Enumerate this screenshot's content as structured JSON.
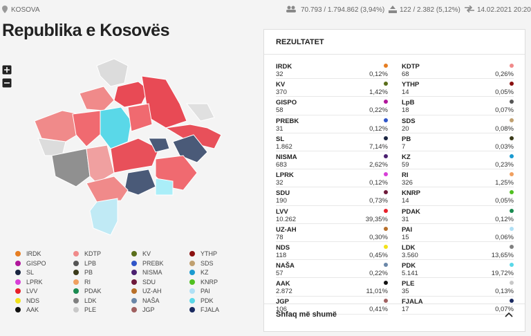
{
  "header": {
    "location": "KOSOVA",
    "voters": "70.793 / 1.794.862 (3,94%)",
    "stations": "122 / 2.382 (5,12%)",
    "updated": "14.02.2021 20:20"
  },
  "title": "Republika e Kosovës",
  "legend": [
    {
      "name": "IRDK",
      "color": "#e67e22"
    },
    {
      "name": "KDTP",
      "color": "#f08a8a"
    },
    {
      "name": "KV",
      "color": "#5a6e1a"
    },
    {
      "name": "YTHP",
      "color": "#8a1010"
    },
    {
      "name": "GISPO",
      "color": "#b0169b"
    },
    {
      "name": "LPB",
      "color": "#555555"
    },
    {
      "name": "PREBK",
      "color": "#2f55c8"
    },
    {
      "name": "SDS",
      "color": "#c0a070"
    },
    {
      "name": "SL",
      "color": "#1a2540"
    },
    {
      "name": "PB",
      "color": "#3a3a1a"
    },
    {
      "name": "NISMA",
      "color": "#4a2070"
    },
    {
      "name": "KZ",
      "color": "#1a9ad0"
    },
    {
      "name": "LPRK",
      "color": "#d83fd8"
    },
    {
      "name": "RI",
      "color": "#f0a060"
    },
    {
      "name": "SDU",
      "color": "#6e1a3a"
    },
    {
      "name": "KNRP",
      "color": "#50c020"
    },
    {
      "name": "LVV",
      "color": "#e8202a"
    },
    {
      "name": "PDAK",
      "color": "#1a8a50"
    },
    {
      "name": "UZ-AH",
      "color": "#b8702a"
    },
    {
      "name": "PAI",
      "color": "#b0e0f5"
    },
    {
      "name": "NDS",
      "color": "#f2e21a"
    },
    {
      "name": "LDK",
      "color": "#808080"
    },
    {
      "name": "NAŠA",
      "color": "#6a87a8"
    },
    {
      "name": "PDK",
      "color": "#5ad8e8"
    },
    {
      "name": "AAK",
      "color": "#111111"
    },
    {
      "name": "PLE",
      "color": "#c8c8c8"
    },
    {
      "name": "JGP",
      "color": "#a06060"
    },
    {
      "name": "FJALA",
      "color": "#1a2a60"
    }
  ],
  "results": {
    "title": "REZULTATET",
    "more": "Shfaq më shumë",
    "items": [
      {
        "name": "IRDK",
        "votes": "32",
        "percent": "0,12%",
        "color": "#e67e22"
      },
      {
        "name": "KDTP",
        "votes": "68",
        "percent": "0,26%",
        "color": "#f08a8a"
      },
      {
        "name": "KV",
        "votes": "370",
        "percent": "1,42%",
        "color": "#5a6e1a"
      },
      {
        "name": "YTHP",
        "votes": "14",
        "percent": "0,05%",
        "color": "#8a1010"
      },
      {
        "name": "GISPO",
        "votes": "58",
        "percent": "0,22%",
        "color": "#b0169b"
      },
      {
        "name": "LpB",
        "votes": "18",
        "percent": "0,07%",
        "color": "#555555"
      },
      {
        "name": "PREBK",
        "votes": "31",
        "percent": "0,12%",
        "color": "#2f55c8"
      },
      {
        "name": "SDS",
        "votes": "20",
        "percent": "0,08%",
        "color": "#c0a070"
      },
      {
        "name": "SL",
        "votes": "1.862",
        "percent": "7,14%",
        "color": "#1a2540"
      },
      {
        "name": "PB",
        "votes": "7",
        "percent": "0,03%",
        "color": "#3a3a1a"
      },
      {
        "name": "NISMA",
        "votes": "683",
        "percent": "2,62%",
        "color": "#4a2070"
      },
      {
        "name": "KZ",
        "votes": "59",
        "percent": "0,23%",
        "color": "#1a9ad0"
      },
      {
        "name": "LPRK",
        "votes": "32",
        "percent": "0,12%",
        "color": "#d83fd8"
      },
      {
        "name": "RI",
        "votes": "326",
        "percent": "1,25%",
        "color": "#f0a060"
      },
      {
        "name": "SDU",
        "votes": "190",
        "percent": "0,73%",
        "color": "#6e1a3a"
      },
      {
        "name": "KNRP",
        "votes": "14",
        "percent": "0,05%",
        "color": "#50c020"
      },
      {
        "name": "LVV",
        "votes": "10.262",
        "percent": "39,35%",
        "color": "#e8202a"
      },
      {
        "name": "PDAK",
        "votes": "31",
        "percent": "0,12%",
        "color": "#1a8a50"
      },
      {
        "name": "UZ-AH",
        "votes": "78",
        "percent": "0,30%",
        "color": "#b8702a"
      },
      {
        "name": "PAI",
        "votes": "15",
        "percent": "0,06%",
        "color": "#b0e0f5"
      },
      {
        "name": "NDS",
        "votes": "118",
        "percent": "0,45%",
        "color": "#f2e21a"
      },
      {
        "name": "LDK",
        "votes": "3.560",
        "percent": "13,65%",
        "color": "#808080"
      },
      {
        "name": "NAŠA",
        "votes": "57",
        "percent": "0,22%",
        "color": "#6a87a8"
      },
      {
        "name": "PDK",
        "votes": "5.141",
        "percent": "19,72%",
        "color": "#5ad8e8"
      },
      {
        "name": "AAK",
        "votes": "2.872",
        "percent": "11,01%",
        "color": "#111111"
      },
      {
        "name": "PLE",
        "votes": "35",
        "percent": "0,13%",
        "color": "#c8c8c8"
      },
      {
        "name": "JGP",
        "votes": "106",
        "percent": "0,41%",
        "color": "#a06060"
      },
      {
        "name": "FJALA",
        "votes": "17",
        "percent": "0,07%",
        "color": "#1a2a60"
      }
    ]
  }
}
